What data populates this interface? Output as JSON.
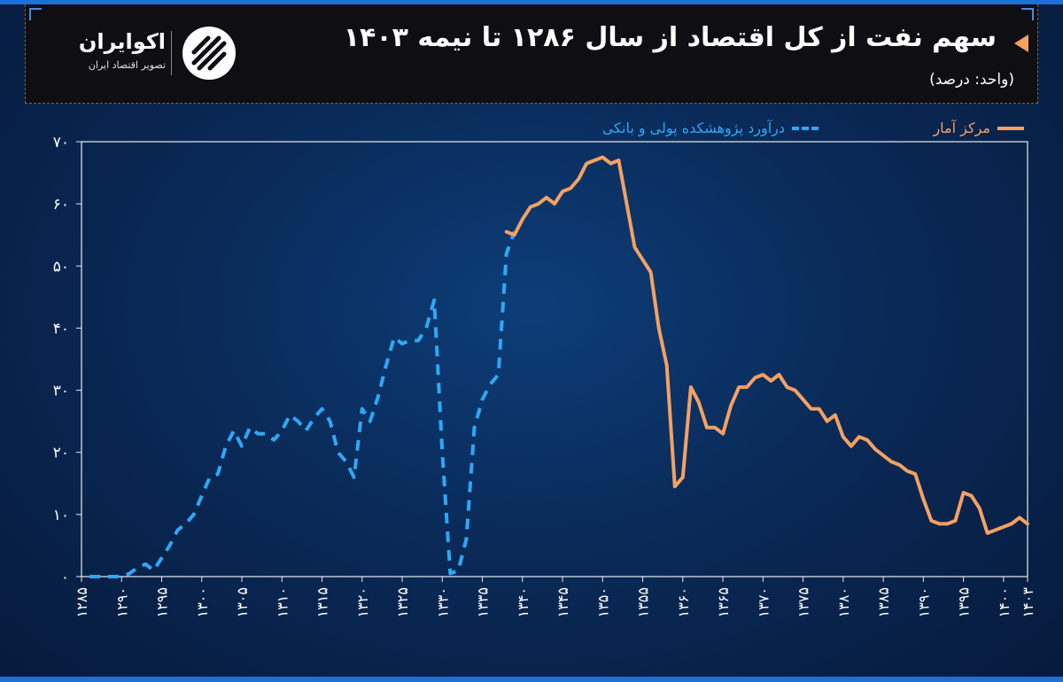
{
  "header": {
    "title": "سهم نفت از کل اقتصاد از سال ۱۲۸۶ تا نیمه ۱۴۰۳",
    "subtitle": "(واحد: درصد)",
    "logo_name": "اکوایران",
    "logo_tagline": "تصویر اقتصاد ایران"
  },
  "colors": {
    "orange": "#f4a161",
    "blue": "#2ea8f5",
    "axis": "#ffffff",
    "accent": "#1f6fd6"
  },
  "chart_data": {
    "type": "line",
    "title": "سهم نفت از کل اقتصاد از سال ۱۲۸۶ تا نیمه ۱۴۰۳",
    "ylabel": "(واحد: درصد)",
    "xlim": [
      1285,
      1403
    ],
    "ylim": [
      0,
      70
    ],
    "grid": false,
    "legend_position": "top-right",
    "yticks": [
      0,
      10,
      20,
      30,
      40,
      50,
      60,
      70
    ],
    "ytick_labels": [
      "۰",
      "۱۰",
      "۲۰",
      "۳۰",
      "۴۰",
      "۵۰",
      "۶۰",
      "۷۰"
    ],
    "xticks": [
      1285,
      1290,
      1295,
      1300,
      1305,
      1310,
      1315,
      1320,
      1325,
      1330,
      1335,
      1340,
      1345,
      1350,
      1355,
      1360,
      1365,
      1370,
      1375,
      1380,
      1385,
      1390,
      1395,
      1400,
      1403
    ],
    "xtick_labels": [
      "۱۲۸۵",
      "۱۲۹۰",
      "۱۲۹۵",
      "۱۳۰۰",
      "۱۳۰۵",
      "۱۳۱۰",
      "۱۳۱۵",
      "۱۳۲۰",
      "۱۳۲۵",
      "۱۳۳۰",
      "۱۳۳۵",
      "۱۳۴۰",
      "۱۳۴۵",
      "۱۳۵۰",
      "۱۳۵۵",
      "۱۳۶۰",
      "۱۳۶۵",
      "۱۳۷۰",
      "۱۳۷۵",
      "۱۳۸۰",
      "۱۳۸۵",
      "۱۳۹۰",
      "۱۳۹۵",
      "۱۴۰۰",
      "۱۴۰۳"
    ],
    "series": [
      {
        "name": "درآورد پژوهشکده پولی و بانکی",
        "color": "#2ea8f5",
        "style": "dashed",
        "x": [
          1286,
          1287,
          1288,
          1289,
          1290,
          1291,
          1292,
          1293,
          1294,
          1295,
          1296,
          1297,
          1298,
          1299,
          1300,
          1301,
          1302,
          1303,
          1304,
          1305,
          1306,
          1307,
          1308,
          1309,
          1310,
          1311,
          1312,
          1313,
          1314,
          1315,
          1316,
          1317,
          1318,
          1319,
          1320,
          1321,
          1322,
          1323,
          1324,
          1325,
          1326,
          1327,
          1328,
          1329,
          1330,
          1331,
          1332,
          1333,
          1334,
          1335,
          1336,
          1337,
          1338,
          1339
        ],
        "y": [
          0,
          0,
          0,
          0,
          0,
          0.5,
          1.5,
          2,
          1,
          3,
          5,
          7.5,
          8.5,
          10,
          13,
          16,
          16.5,
          21,
          23.5,
          21,
          24,
          23,
          23,
          22,
          23.5,
          26,
          25,
          23.5,
          25.5,
          27,
          25,
          20,
          18.5,
          16,
          27,
          25,
          29,
          34,
          38.5,
          37.5,
          38,
          38,
          40,
          44.5,
          20,
          0.5,
          1,
          6,
          24,
          28.5,
          31,
          32.5,
          52,
          55.5
        ]
      },
      {
        "name": "مرکز آمار",
        "color": "#f4a161",
        "style": "solid",
        "x": [
          1338,
          1339,
          1340,
          1341,
          1342,
          1343,
          1344,
          1345,
          1346,
          1347,
          1348,
          1349,
          1350,
          1351,
          1352,
          1353,
          1354,
          1355,
          1356,
          1357,
          1358,
          1359,
          1360,
          1361,
          1362,
          1363,
          1364,
          1365,
          1366,
          1367,
          1368,
          1369,
          1370,
          1371,
          1372,
          1373,
          1374,
          1375,
          1376,
          1377,
          1378,
          1379,
          1380,
          1381,
          1382,
          1383,
          1384,
          1385,
          1386,
          1387,
          1388,
          1389,
          1390,
          1391,
          1392,
          1393,
          1394,
          1395,
          1396,
          1397,
          1398,
          1399,
          1400,
          1401,
          1402,
          1403
        ],
        "y": [
          55.5,
          55,
          57.5,
          59.5,
          60,
          61,
          60,
          62,
          62.5,
          64,
          66.5,
          67,
          67.5,
          66.5,
          67,
          60,
          53,
          51,
          49,
          40,
          34,
          14.5,
          16,
          30.5,
          28,
          24,
          24,
          23,
          27.5,
          30.5,
          30.5,
          32,
          32.5,
          31.5,
          32.5,
          30.5,
          30,
          28.5,
          27,
          27,
          25,
          26,
          22.5,
          21,
          22.5,
          22,
          20.5,
          19.5,
          18.5,
          18,
          17,
          16.5,
          12.5,
          9,
          8.5,
          8.5,
          9,
          13.5,
          13,
          11,
          7,
          7.5,
          8,
          8.5,
          9.5,
          8.5
        ]
      }
    ]
  }
}
